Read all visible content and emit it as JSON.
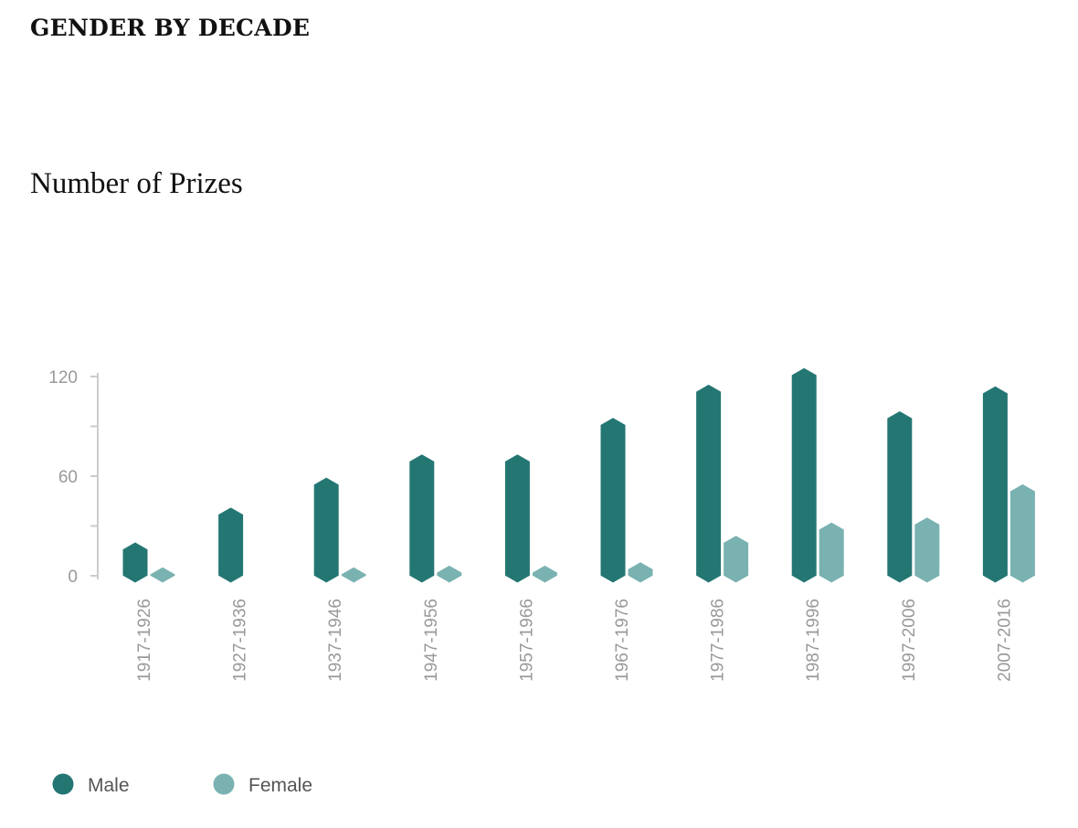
{
  "header": {
    "title": "GENDER BY DECADE"
  },
  "chart_data": {
    "type": "bar",
    "title": "Number of Prizes",
    "xlabel": "",
    "ylabel": "",
    "ylim": [
      0,
      120
    ],
    "yticks": [
      "0",
      "60",
      "120"
    ],
    "grid": false,
    "legend_position": "bottom-left",
    "categories": [
      "1917-1926",
      "1927-1936",
      "1937-1946",
      "1947-1956",
      "1957-1966",
      "1967-1976",
      "1977-1986",
      "1987-1996",
      "1997-2006",
      "2007-2016"
    ],
    "series": [
      {
        "name": "Male",
        "color": "#247673",
        "values": [
          16,
          37,
          55,
          69,
          69,
          91,
          111,
          121,
          95,
          110
        ]
      },
      {
        "name": "Female",
        "color": "#79b2b1",
        "values": [
          1,
          0,
          1,
          2,
          2,
          4,
          20,
          28,
          31,
          51
        ]
      }
    ]
  }
}
